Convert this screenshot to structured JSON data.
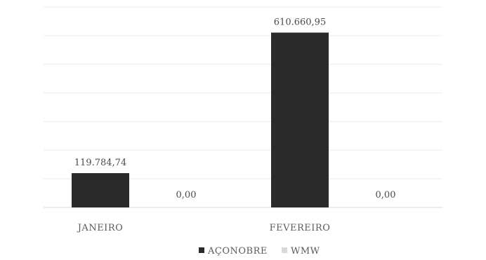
{
  "chart_data": {
    "type": "bar",
    "categories": [
      "JANEIRO",
      "FEVEREIRO"
    ],
    "series": [
      {
        "name": "AÇONOBRE",
        "values": [
          119784.74,
          610660.95
        ],
        "labels": [
          "119.784,74",
          "610.660,95"
        ],
        "color": "#2b2b2b"
      },
      {
        "name": "WMW",
        "values": [
          0,
          0
        ],
        "labels": [
          "0,00",
          "0,00"
        ],
        "color": "#d9d9d9"
      }
    ],
    "title": "",
    "xlabel": "",
    "ylabel": "",
    "ylim": [
      0,
      700000
    ],
    "grid": true,
    "legend_position": "bottom"
  }
}
